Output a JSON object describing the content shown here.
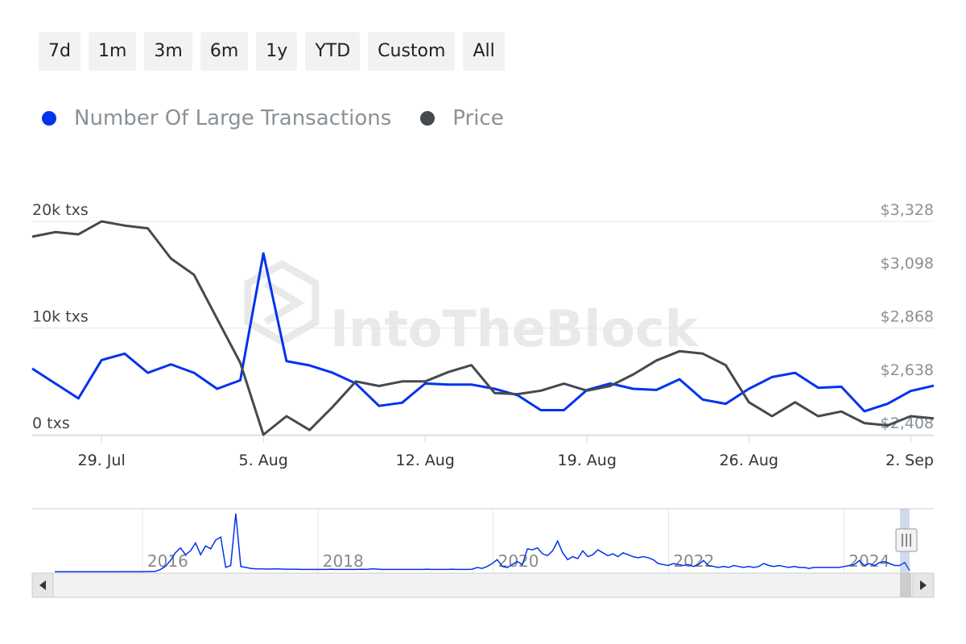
{
  "range_buttons": [
    "7d",
    "1m",
    "3m",
    "6m",
    "1y",
    "YTD",
    "Custom",
    "All"
  ],
  "legend": [
    {
      "label": "Number Of Large Transactions",
      "color": "#0033ee"
    },
    {
      "label": "Price",
      "color": "#444a4e"
    }
  ],
  "watermark": "IntoTheBlock",
  "chart_data": {
    "type": "line",
    "x_tick_labels": [
      "29. Jul",
      "5. Aug",
      "12. Aug",
      "19. Aug",
      "26. Aug",
      "2. Sep"
    ],
    "x_tick_dates": [
      "2024-07-29",
      "2024-08-05",
      "2024-08-12",
      "2024-08-19",
      "2024-08-26",
      "2024-09-02"
    ],
    "left_axis": {
      "tick_labels": [
        "20k txs",
        "10k txs",
        "0 txs"
      ],
      "ylim": [
        0,
        20000
      ]
    },
    "right_axis": {
      "tick_labels": [
        "$3,328",
        "$3,098",
        "$2,868",
        "$2,638",
        "$2,408"
      ],
      "ylim": [
        2408,
        3328
      ]
    },
    "x": [
      "2024-07-26",
      "2024-07-27",
      "2024-07-28",
      "2024-07-29",
      "2024-07-30",
      "2024-07-31",
      "2024-08-01",
      "2024-08-02",
      "2024-08-03",
      "2024-08-04",
      "2024-08-05",
      "2024-08-06",
      "2024-08-07",
      "2024-08-08",
      "2024-08-09",
      "2024-08-10",
      "2024-08-11",
      "2024-08-12",
      "2024-08-13",
      "2024-08-14",
      "2024-08-15",
      "2024-08-16",
      "2024-08-17",
      "2024-08-18",
      "2024-08-19",
      "2024-08-20",
      "2024-08-21",
      "2024-08-22",
      "2024-08-23",
      "2024-08-24",
      "2024-08-25",
      "2024-08-26",
      "2024-08-27",
      "2024-08-28",
      "2024-08-29",
      "2024-08-30",
      "2024-08-31",
      "2024-09-01",
      "2024-09-02",
      "2024-09-03"
    ],
    "series": [
      {
        "name": "Number Of Large Transactions",
        "axis": "left",
        "color": "#0033ee",
        "values": [
          6200,
          4800,
          3400,
          7000,
          7600,
          5800,
          6600,
          5800,
          4300,
          5100,
          17000,
          6900,
          6500,
          5800,
          4800,
          2700,
          3000,
          4800,
          4700,
          4700,
          4300,
          3700,
          2300,
          2300,
          4200,
          4800,
          4300,
          4200,
          5200,
          3300,
          2900,
          4300,
          5400,
          5800,
          4400,
          4500,
          2200,
          2900,
          4100,
          4600
        ]
      },
      {
        "name": "Price",
        "axis": "right",
        "color": "#444a4e",
        "values": [
          3262,
          3282,
          3272,
          3328,
          3310,
          3298,
          3168,
          3098,
          2908,
          2718,
          2408,
          2488,
          2428,
          2528,
          2638,
          2618,
          2638,
          2638,
          2678,
          2708,
          2588,
          2583,
          2598,
          2628,
          2598,
          2618,
          2668,
          2728,
          2768,
          2758,
          2708,
          2548,
          2488,
          2548,
          2488,
          2508,
          2458,
          2448,
          2488,
          2478
        ]
      }
    ]
  },
  "navigator": {
    "year_labels": [
      "2016",
      "2018",
      "2020",
      "2022",
      "2024"
    ],
    "series_values": [
      300,
      300,
      300,
      300,
      300,
      300,
      300,
      300,
      300,
      300,
      300,
      300,
      300,
      300,
      350,
      350,
      300,
      300,
      350,
      400,
      500,
      1500,
      3000,
      6000,
      10000,
      12500,
      9000,
      11000,
      15000,
      9000,
      13500,
      12000,
      16500,
      18000,
      2500,
      3500,
      30000,
      3000,
      2500,
      2000,
      1800,
      1800,
      1700,
      1700,
      1800,
      1700,
      1600,
      1600,
      1600,
      1500,
      1500,
      1500,
      1500,
      1500,
      1500,
      1600,
      1500,
      1500,
      1500,
      1500,
      1500,
      1600,
      1500,
      1800,
      1700,
      1500,
      1500,
      1500,
      1500,
      1500,
      1500,
      1500,
      1500,
      1500,
      1600,
      1500,
      1500,
      1500,
      1500,
      1600,
      1500,
      1500,
      1500,
      1600,
      2500,
      2000,
      3000,
      4500,
      6500,
      3000,
      2500,
      4000,
      5500,
      4000,
      12000,
      11500,
      12500,
      9500,
      8500,
      11000,
      16000,
      10000,
      6500,
      8000,
      7000,
      11000,
      8000,
      9000,
      11500,
      10000,
      8500,
      9500,
      8000,
      10000,
      9000,
      8000,
      7500,
      8000,
      7500,
      6500,
      4500,
      4000,
      3500,
      4500,
      4000,
      3500,
      4000,
      3000,
      4000,
      6000,
      3500,
      3000,
      2500,
      3000,
      2500,
      3500,
      3000,
      2500,
      3000,
      2500,
      3000,
      4500,
      3500,
      3000,
      3500,
      3000,
      2500,
      3000,
      2500,
      2500,
      2000,
      2500,
      2500,
      2500,
      2500,
      2500,
      2500,
      3000,
      3500,
      4000,
      6000,
      3500,
      4500,
      3500,
      5000,
      5500,
      4500,
      3500,
      3500,
      5000,
      1000
    ]
  }
}
